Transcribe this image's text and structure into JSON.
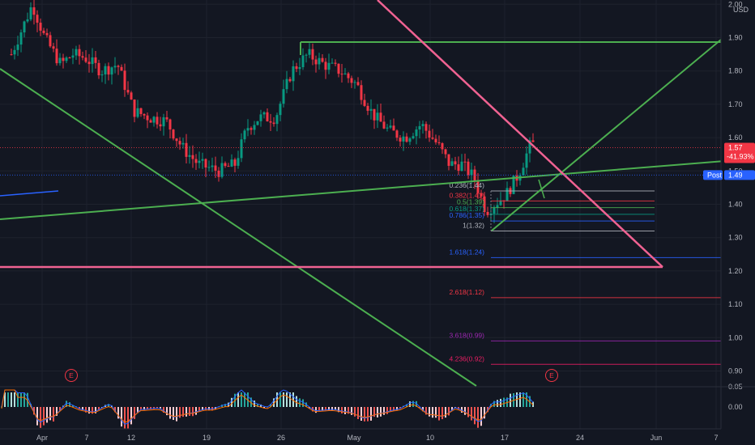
{
  "chart_data": {
    "type": "candlestick",
    "currency": "USD",
    "price_axis": {
      "ticks": [
        "2.00",
        "1.90",
        "1.80",
        "1.70",
        "1.60",
        "1.50",
        "1.40",
        "1.30",
        "1.20",
        "1.10",
        "1.00",
        "0.90"
      ],
      "range": [
        0.87,
        2.02
      ]
    },
    "time_axis": {
      "ticks": [
        "Apr",
        "7",
        "12",
        "19",
        "26",
        "May",
        "10",
        "17",
        "24",
        "Jun",
        "7"
      ]
    },
    "macd_axis": {
      "ticks": [
        "0.05",
        "0.00"
      ]
    },
    "last_price": {
      "value": "1.57",
      "change": "-41.93%",
      "color": "#f23645"
    },
    "post_price": {
      "label": "Post",
      "value": "1.49",
      "color": "#2962ff"
    },
    "fib_levels": [
      {
        "label": "0.236(1.44)",
        "value": 1.44,
        "color": "#b2b5be"
      },
      {
        "label": "0.382(1.41)",
        "value": 1.41,
        "color": "#f23645"
      },
      {
        "label": "0.5(1.39)",
        "value": 1.39,
        "color": "#4caf50"
      },
      {
        "label": "0.618(1.37)",
        "value": 1.37,
        "color": "#089981"
      },
      {
        "label": "0.786(1.35)",
        "value": 1.35,
        "color": "#2962ff"
      },
      {
        "label": "1(1.32)",
        "value": 1.32,
        "color": "#b2b5be"
      },
      {
        "label": "1.618(1.24)",
        "value": 1.24,
        "color": "#2962ff"
      },
      {
        "label": "2.618(1.12)",
        "value": 1.12,
        "color": "#f23645"
      },
      {
        "label": "3.618(0.99)",
        "value": 0.99,
        "color": "#9c27b0"
      },
      {
        "label": "4.236(0.92)",
        "value": 0.92,
        "color": "#e91e63"
      }
    ],
    "earnings_markers": [
      "E",
      "E"
    ],
    "colors": {
      "up": "#089981",
      "down": "#f23645",
      "trendline_green": "#4caf50",
      "trendline_pink": "#f06292",
      "background": "#131722",
      "grid": "#1e222d",
      "macd_line": "#2962ff",
      "signal_line": "#ff6d00"
    }
  }
}
